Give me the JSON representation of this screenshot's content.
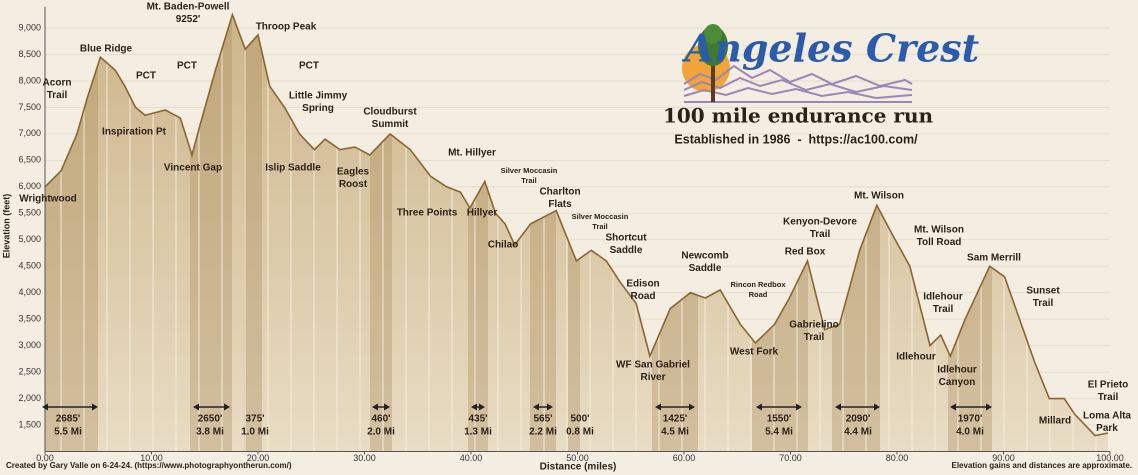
{
  "chart_data": {
    "type": "area",
    "xlabel": "Distance (miles)",
    "ylabel": "Elevation (feet)",
    "color": "#d6c3a0",
    "line_color": "#8a6530",
    "grid": true,
    "xlim": [
      0,
      100
    ],
    "ylim": [
      1000,
      9400
    ],
    "xticks": [
      {
        "value": 0,
        "label": "0.00"
      },
      {
        "value": 10,
        "label": "10.00"
      },
      {
        "value": 20,
        "label": "20.00"
      },
      {
        "value": 30,
        "label": "30.00"
      },
      {
        "value": 40,
        "label": "40.00"
      },
      {
        "value": 50,
        "label": "50.00"
      },
      {
        "value": 60,
        "label": "60.00"
      },
      {
        "value": 70,
        "label": "70.00"
      },
      {
        "value": 80,
        "label": "80.00"
      },
      {
        "value": 90,
        "label": "90.00"
      },
      {
        "value": 100,
        "label": "100.00"
      }
    ],
    "yticks": [
      {
        "value": 1500,
        "label": "1,500"
      },
      {
        "value": 2000,
        "label": "2,000"
      },
      {
        "value": 2500,
        "label": "2,500"
      },
      {
        "value": 3000,
        "label": "3,000"
      },
      {
        "value": 3500,
        "label": "3,500"
      },
      {
        "value": 4000,
        "label": "4,000"
      },
      {
        "value": 4500,
        "label": "4,500"
      },
      {
        "value": 5000,
        "label": "5,000"
      },
      {
        "value": 5500,
        "label": "5,500"
      },
      {
        "value": 6000,
        "label": "6,000"
      },
      {
        "value": 6500,
        "label": "6,500"
      },
      {
        "value": 7000,
        "label": "7,000"
      },
      {
        "value": 7500,
        "label": "7,500"
      },
      {
        "value": 8000,
        "label": "8,000"
      },
      {
        "value": 8500,
        "label": "8,500"
      },
      {
        "value": 9000,
        "label": "9,000"
      }
    ],
    "x": [
      0,
      1.5,
      3,
      4,
      5.2,
      6.6,
      7.5,
      8.5,
      9.4,
      11.3,
      12.7,
      13.8,
      14.6,
      16,
      17.6,
      18.8,
      20,
      21.1,
      22.5,
      23.9,
      25.3,
      26.3,
      27.7,
      29.1,
      30.5,
      32.4,
      34.3,
      36.2,
      37.7,
      39,
      39.9,
      41.3,
      42.3,
      43.2,
      44.1,
      45.6,
      48,
      49.9,
      51.3,
      52.7,
      54,
      55.5,
      56.8,
      58.7,
      60.6,
      62,
      63.4,
      65.3,
      66.7,
      68.5,
      69.9,
      71.6,
      73.2,
      74.6,
      76.5,
      78.1,
      79.3,
      81.2,
      83.1,
      84.1,
      85,
      86.4,
      88.7,
      90.1,
      91.5,
      92.9,
      94.3,
      95.7,
      96.7,
      98.6,
      99.8
    ],
    "values": [
      6000,
      6300,
      7000,
      7700,
      8450,
      8200,
      7900,
      7500,
      7350,
      7450,
      7300,
      6600,
      7200,
      8200,
      9250,
      8600,
      8870,
      7900,
      7500,
      7000,
      6700,
      6900,
      6700,
      6750,
      6600,
      7000,
      6700,
      6200,
      6000,
      5900,
      5600,
      6100,
      5500,
      5300,
      4900,
      5300,
      5550,
      4600,
      4800,
      4600,
      4200,
      3800,
      2800,
      3700,
      4000,
      3900,
      4050,
      3400,
      3050,
      3400,
      3900,
      4600,
      3300,
      3400,
      4800,
      5650,
      5200,
      4500,
      3000,
      3200,
      2800,
      3500,
      4500,
      4300,
      3500,
      2700,
      2000,
      2000,
      1700,
      1300,
      1350
    ],
    "annotations": [
      {
        "lines": [
          "Acorn",
          "Trail"
        ]
      },
      {
        "lines": [
          "Blue Ridge"
        ]
      },
      {
        "lines": [
          "PCT"
        ]
      },
      {
        "lines": [
          "Inspiration Pt"
        ]
      },
      {
        "lines": [
          "Mt. Baden-Powell",
          "9252'"
        ]
      },
      {
        "lines": [
          "PCT"
        ]
      },
      {
        "lines": [
          "Throop Peak"
        ]
      },
      {
        "lines": [
          "PCT"
        ]
      },
      {
        "lines": [
          "Vincent Gap"
        ]
      },
      {
        "lines": [
          "Little Jimmy",
          "Spring"
        ]
      },
      {
        "lines": [
          "Cloudburst",
          "Summit"
        ]
      },
      {
        "lines": [
          "Islip Saddle"
        ]
      },
      {
        "lines": [
          "Eagles",
          "Roost"
        ]
      },
      {
        "lines": [
          "Mt. Hillyer"
        ]
      },
      {
        "lines": [
          "Silver Moccasin",
          "Trail"
        ]
      },
      {
        "lines": [
          "Three Points"
        ]
      },
      {
        "lines": [
          "Hillyer"
        ]
      },
      {
        "lines": [
          "Charlton",
          "Flats"
        ]
      },
      {
        "lines": [
          "Chilao"
        ]
      },
      {
        "lines": [
          "Silver Moccasin",
          "Trail"
        ]
      },
      {
        "lines": [
          "Shortcut",
          "Saddle"
        ]
      },
      {
        "lines": [
          "Edison",
          "Road"
        ]
      },
      {
        "lines": [
          "WF San Gabriel",
          "River"
        ]
      },
      {
        "lines": [
          "Newcomb",
          "Saddle"
        ]
      },
      {
        "lines": [
          "Rincon Redbox",
          "Road"
        ]
      },
      {
        "lines": [
          "West Fork"
        ]
      },
      {
        "lines": [
          "Red Box"
        ]
      },
      {
        "lines": [
          "Gabrielino",
          "Trail"
        ]
      },
      {
        "lines": [
          "Kenyon-Devore",
          "Trail"
        ]
      },
      {
        "lines": [
          "Mt. Wilson"
        ]
      },
      {
        "lines": [
          "Mt. Wilson",
          "Toll Road"
        ]
      },
      {
        "lines": [
          "Sam Merrill"
        ]
      },
      {
        "lines": [
          "Idlehour",
          "Trail"
        ]
      },
      {
        "lines": [
          "Sunset",
          "Trail"
        ]
      },
      {
        "lines": [
          "Idlehour"
        ]
      },
      {
        "lines": [
          "Idlehour",
          "Canyon"
        ]
      },
      {
        "lines": [
          "Millard"
        ]
      },
      {
        "lines": [
          "El Prieto",
          "Trail"
        ]
      },
      {
        "lines": [
          "Loma Alta",
          "Park"
        ]
      },
      {
        "lines": [
          "Wrightwood"
        ]
      }
    ],
    "segments": [
      {
        "gain": "2685'",
        "distance": "5.5 Mi"
      },
      {
        "gain": "2650'",
        "distance": "3.8 Mi"
      },
      {
        "gain": "375'",
        "distance": "1.0 Mi"
      },
      {
        "gain": "460'",
        "distance": "2.0 Mi"
      },
      {
        "gain": "435'",
        "distance": "1.3 Mi"
      },
      {
        "gain": "565'",
        "distance": "2.2 Mi"
      },
      {
        "gain": "500'",
        "distance": "0.8 Mi"
      },
      {
        "gain": "1425'",
        "distance": "4.5 Mi"
      },
      {
        "gain": "1550'",
        "distance": "5.4 Mi"
      },
      {
        "gain": "2090'",
        "distance": "4.4 Mi"
      },
      {
        "gain": "1970'",
        "distance": "4.0 Mi"
      }
    ]
  },
  "logo": {
    "title": "Angeles Crest",
    "subtitle": "100 mile endurance run",
    "established": "Established in 1986  -  https://ac100.com/"
  },
  "footer": {
    "credit": "Created by Gary Valle on 6-24-24. (https://www.photographyontherun.com/)",
    "note": "Elevation gains and distances are approximate."
  }
}
